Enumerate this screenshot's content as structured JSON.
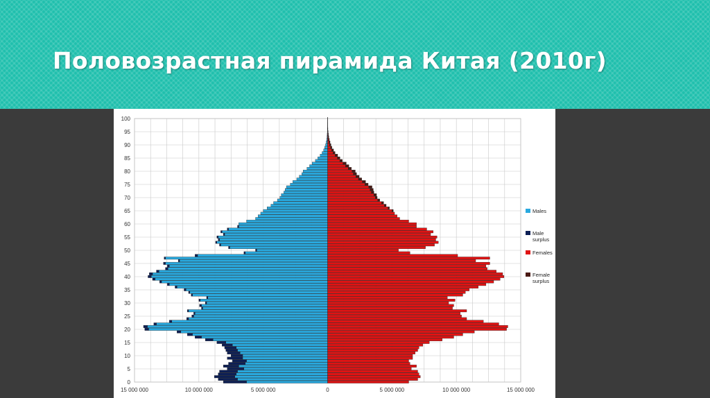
{
  "slide": {
    "title": "Половозрастная пирамида Китая (2010г)"
  },
  "colors": {
    "males": "#29a9df",
    "male_surplus": "#0d1f55",
    "females": "#e01313",
    "female_surplus": "#4a1a14",
    "grid": "#c8c8c8"
  },
  "chart_data": {
    "type": "bar",
    "orientation": "horizontal-pyramid",
    "title": "",
    "xlabel": "",
    "ylabel": "",
    "xlim": [
      -15000000,
      15000000
    ],
    "ylim": [
      0,
      100
    ],
    "grid": true,
    "legend_position": "right",
    "y_ticks": [
      0,
      5,
      10,
      15,
      20,
      25,
      30,
      35,
      40,
      45,
      50,
      55,
      60,
      65,
      70,
      75,
      80,
      85,
      90,
      95,
      100
    ],
    "x_ticks": [
      -15000000,
      -10000000,
      -5000000,
      0,
      5000000,
      10000000,
      15000000
    ],
    "x_tick_labels": [
      "15 000 000",
      "10 000 000",
      "5 000 000",
      "0",
      "5 000 000",
      "10 000 000",
      "15 000 000"
    ],
    "legend": [
      {
        "label": "Males",
        "color": "#29a9df"
      },
      {
        "label": "Male surplus",
        "color": "#0d1f55"
      },
      {
        "label": "Females",
        "color": "#e01313"
      },
      {
        "label": "Female surplus",
        "color": "#4a1a14"
      }
    ],
    "ages": [
      0,
      1,
      2,
      3,
      4,
      5,
      6,
      7,
      8,
      9,
      10,
      11,
      12,
      13,
      14,
      15,
      16,
      17,
      18,
      19,
      20,
      21,
      22,
      23,
      24,
      25,
      26,
      27,
      28,
      29,
      30,
      31,
      32,
      33,
      34,
      35,
      36,
      37,
      38,
      39,
      40,
      41,
      42,
      43,
      44,
      45,
      46,
      47,
      48,
      49,
      50,
      51,
      52,
      53,
      54,
      55,
      56,
      57,
      58,
      59,
      60,
      61,
      62,
      63,
      64,
      65,
      66,
      67,
      68,
      69,
      70,
      71,
      72,
      73,
      74,
      75,
      76,
      77,
      78,
      79,
      80,
      81,
      82,
      83,
      84,
      85,
      86,
      87,
      88,
      89,
      90,
      91,
      92,
      93,
      94,
      95,
      96,
      97,
      98,
      99,
      100
    ],
    "series": [
      {
        "name": "Males",
        "values": [
          6300000,
          7000000,
          7200000,
          7100000,
          7000000,
          6500000,
          6900000,
          6400000,
          6300000,
          6600000,
          6600000,
          6800000,
          7000000,
          7100000,
          7400000,
          7900000,
          8900000,
          9800000,
          10500000,
          11400000,
          13900000,
          14000000,
          13300000,
          12100000,
          10800000,
          10400000,
          10300000,
          10800000,
          9700000,
          9800000,
          9400000,
          9900000,
          9300000,
          10500000,
          10700000,
          11000000,
          11700000,
          12300000,
          12900000,
          13400000,
          13700000,
          13600000,
          13100000,
          12400000,
          12300000,
          12600000,
          11500000,
          12600000,
          10100000,
          6400000,
          5500000,
          7600000,
          8300000,
          8600000,
          8400000,
          8500000,
          8000000,
          8200000,
          7700000,
          6900000,
          6900000,
          6300000,
          5600000,
          5400000,
          5200000,
          5000000,
          4700000,
          4400000,
          4200000,
          3900000,
          3700000,
          3600000,
          3400000,
          3300000,
          3200000,
          2900000,
          2700000,
          2400000,
          2200000,
          2000000,
          1900000,
          1600000,
          1400000,
          1200000,
          950000,
          760000,
          580000,
          430000,
          310000,
          230000,
          160000,
          110000,
          75000,
          50000,
          32000,
          20000,
          12000,
          7000,
          4000,
          2000,
          1000
        ]
      },
      {
        "name": "Male surplus",
        "values": [
          1800000,
          1500000,
          1600000,
          1400000,
          1400000,
          1300000,
          1200000,
          1300000,
          1100000,
          1200000,
          900000,
          1000000,
          900000,
          900000,
          800000,
          700000,
          600000,
          500000,
          400000,
          300000,
          300000,
          300000,
          200000,
          200000,
          150000,
          150000,
          100000,
          100000,
          100000,
          150000,
          100000,
          100000,
          100000,
          100000,
          100000,
          150000,
          150000,
          150000,
          150000,
          200000,
          250000,
          250000,
          200000,
          200000,
          150000,
          150000,
          100000,
          100000,
          200000,
          100000,
          100000,
          100000,
          100000,
          100000,
          100000,
          100000,
          100000,
          100000,
          100000,
          100000,
          0,
          0,
          0,
          0,
          0,
          0,
          0,
          0,
          0,
          0,
          0,
          0,
          0,
          0,
          0,
          0,
          0,
          0,
          0,
          0,
          0,
          0,
          0,
          0,
          0,
          0,
          0,
          0,
          0,
          0,
          0,
          0,
          0,
          0,
          0,
          0,
          0,
          0,
          0,
          0,
          0
        ]
      },
      {
        "name": "Females",
        "values": [
          6300000,
          7000000,
          7200000,
          7100000,
          7000000,
          6500000,
          6900000,
          6400000,
          6300000,
          6600000,
          6600000,
          6800000,
          7000000,
          7100000,
          7400000,
          7900000,
          8900000,
          9800000,
          10500000,
          11400000,
          13900000,
          14000000,
          13300000,
          12100000,
          10800000,
          10400000,
          10300000,
          10800000,
          9700000,
          9800000,
          9400000,
          9900000,
          9300000,
          10500000,
          10700000,
          11000000,
          11700000,
          12300000,
          12900000,
          13400000,
          13700000,
          13600000,
          13100000,
          12400000,
          12300000,
          12600000,
          11500000,
          12600000,
          10100000,
          6400000,
          5500000,
          7600000,
          8300000,
          8600000,
          8400000,
          8500000,
          8000000,
          8200000,
          7700000,
          6900000,
          6900000,
          6300000,
          5600000,
          5400000,
          5200000,
          5000000,
          4700000,
          4400000,
          4200000,
          3900000,
          3700000,
          3600000,
          3400000,
          3300000,
          3200000,
          2900000,
          2700000,
          2400000,
          2200000,
          2000000,
          1900000,
          1600000,
          1400000,
          1200000,
          950000,
          760000,
          580000,
          430000,
          310000,
          230000,
          160000,
          110000,
          75000,
          50000,
          32000,
          20000,
          12000,
          7000,
          4000,
          2000,
          1000
        ]
      },
      {
        "name": "Female surplus",
        "values": [
          0,
          0,
          0,
          0,
          0,
          0,
          0,
          0,
          0,
          0,
          0,
          0,
          0,
          0,
          0,
          0,
          0,
          0,
          0,
          0,
          0,
          0,
          0,
          0,
          0,
          0,
          0,
          0,
          0,
          0,
          0,
          0,
          0,
          0,
          0,
          0,
          0,
          0,
          0,
          0,
          0,
          0,
          0,
          0,
          0,
          0,
          0,
          0,
          0,
          0,
          0,
          0,
          0,
          0,
          0,
          0,
          0,
          0,
          0,
          0,
          0,
          0,
          0,
          0,
          0,
          100000,
          100000,
          150000,
          150000,
          150000,
          150000,
          200000,
          200000,
          250000,
          250000,
          250000,
          250000,
          250000,
          250000,
          250000,
          250000,
          250000,
          250000,
          250000,
          200000,
          200000,
          200000,
          150000,
          150000,
          100000,
          100000,
          80000,
          60000,
          40000,
          30000,
          20000,
          10000,
          5000,
          3000,
          2000,
          1000
        ]
      }
    ]
  }
}
